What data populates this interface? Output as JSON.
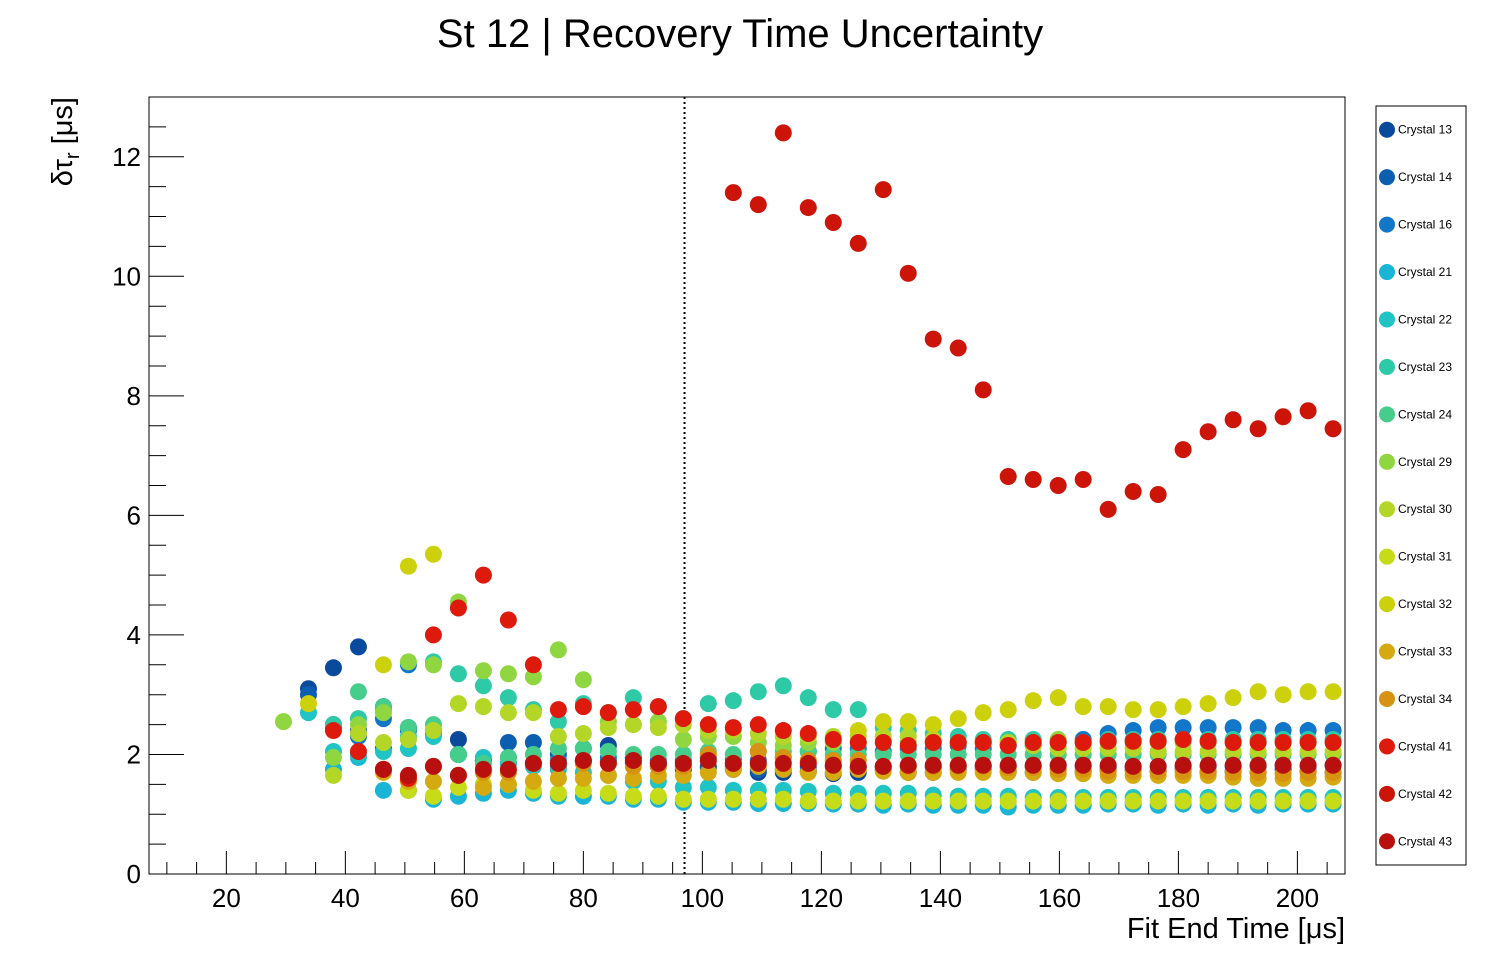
{
  "chart_data": {
    "type": "scatter",
    "title": "St 12 | Recovery Time Uncertainty",
    "xlabel": "Fit End Time [μs]",
    "ylabel": "δτr [μs]",
    "ylabel_main": "δτ",
    "ylabel_sub": "r",
    "ylabel_unit": " [μs]",
    "xlim": [
      7,
      208
    ],
    "ylim": [
      0,
      13
    ],
    "x_ticks": [
      "20",
      "40",
      "60",
      "80",
      "100",
      "120",
      "140",
      "160",
      "180",
      "200"
    ],
    "y_ticks": [
      "0",
      "2",
      "4",
      "6",
      "8",
      "10",
      "12"
    ],
    "vertical_line": {
      "x": 97,
      "style": "dotted"
    },
    "legend_position": "right",
    "x": [
      29.6,
      33.8,
      38.0,
      42.2,
      46.4,
      50.6,
      54.8,
      59.0,
      63.2,
      67.4,
      71.6,
      75.8,
      80.0,
      84.2,
      88.4,
      92.6,
      96.8,
      101.0,
      105.2,
      109.4,
      113.6,
      117.8,
      122.0,
      126.2,
      130.4,
      134.6,
      138.8,
      143.0,
      147.2,
      151.4,
      155.6,
      159.8,
      164.0,
      168.2,
      172.4,
      176.6,
      180.8,
      185.0,
      189.2,
      193.4,
      197.6,
      201.8,
      206.0
    ],
    "series": [
      {
        "name": "Crystal 13",
        "color": "#0a4a9c",
        "values": [
          null,
          3.1,
          3.45,
          3.8,
          2.8,
          2.45,
          2.4,
          2.25,
          1.9,
          1.85,
          1.85,
          1.8,
          2.1,
          2.15,
          1.95,
          1.85,
          1.75,
          1.8,
          1.75,
          1.7,
          1.7,
          1.72,
          1.68,
          1.7,
          1.75,
          1.7,
          1.7,
          1.75,
          1.75,
          1.72,
          1.7,
          1.75,
          1.72,
          1.75,
          1.75,
          1.72,
          1.75,
          1.7,
          1.72,
          1.7,
          1.75,
          1.72,
          1.7
        ]
      },
      {
        "name": "Crystal 14",
        "color": "#0c5fb0",
        "values": [
          null,
          3.0,
          2.5,
          2.4,
          2.1,
          2.4,
          2.35,
          2.0,
          1.9,
          2.2,
          2.2,
          2.0,
          1.9,
          1.9,
          1.85,
          1.8,
          1.8,
          1.78,
          1.8,
          1.75,
          1.75,
          1.8,
          1.8,
          1.78,
          1.8,
          1.8,
          1.78,
          1.8,
          1.8,
          1.8,
          1.8,
          1.82,
          1.8,
          1.8,
          1.8,
          1.8,
          1.8,
          1.8,
          1.8,
          1.8,
          1.82,
          1.8,
          1.82
        ]
      },
      {
        "name": "Crystal 16",
        "color": "#1277c9",
        "values": [
          null,
          null,
          2.45,
          2.3,
          2.6,
          3.5,
          2.4,
          2.0,
          1.9,
          1.95,
          1.85,
          1.9,
          1.9,
          1.95,
          1.95,
          1.9,
          1.9,
          1.95,
          1.92,
          1.9,
          1.95,
          2.05,
          2.1,
          2.1,
          2.05,
          2.1,
          2.1,
          2.15,
          2.1,
          2.15,
          2.15,
          2.2,
          2.25,
          2.35,
          2.4,
          2.45,
          2.45,
          2.45,
          2.45,
          2.45,
          2.4,
          2.4,
          2.4
        ]
      },
      {
        "name": "Crystal 21",
        "color": "#1ab4d6",
        "values": [
          null,
          null,
          1.75,
          1.95,
          1.4,
          1.4,
          1.25,
          1.3,
          1.35,
          1.4,
          1.35,
          1.3,
          1.3,
          1.3,
          1.25,
          1.25,
          1.2,
          1.2,
          1.2,
          1.18,
          1.18,
          1.18,
          1.17,
          1.17,
          1.15,
          1.17,
          1.15,
          1.15,
          1.15,
          1.12,
          1.15,
          1.15,
          1.15,
          1.17,
          1.17,
          1.15,
          1.17,
          1.15,
          1.17,
          1.15,
          1.17,
          1.17,
          1.17
        ]
      },
      {
        "name": "Crystal 22",
        "color": "#20c4c4",
        "values": [
          null,
          2.7,
          2.05,
          2.0,
          2.05,
          2.1,
          2.3,
          2.0,
          1.95,
          1.85,
          1.8,
          1.75,
          1.7,
          1.65,
          1.55,
          1.55,
          1.45,
          1.45,
          1.4,
          1.4,
          1.4,
          1.38,
          1.35,
          1.35,
          1.35,
          1.35,
          1.32,
          1.3,
          1.3,
          1.3,
          1.28,
          1.28,
          1.28,
          1.28,
          1.28,
          1.28,
          1.28,
          1.28,
          1.28,
          1.28,
          1.28,
          1.28,
          1.28
        ]
      },
      {
        "name": "Crystal 23",
        "color": "#2ecaa8",
        "values": [
          null,
          null,
          2.5,
          2.6,
          2.75,
          2.3,
          3.55,
          3.35,
          3.15,
          2.95,
          2.75,
          2.55,
          2.85,
          2.7,
          2.95,
          2.8,
          2.6,
          2.85,
          2.9,
          3.05,
          3.15,
          2.95,
          2.75,
          2.75,
          2.45,
          2.4,
          2.35,
          2.3,
          2.25,
          2.25,
          2.25,
          2.2,
          2.2,
          2.25,
          2.25,
          2.25,
          2.25,
          2.25,
          2.25,
          2.25,
          2.25,
          2.25,
          2.25
        ]
      },
      {
        "name": "Crystal 24",
        "color": "#47cd8b",
        "values": [
          null,
          null,
          null,
          3.05,
          2.8,
          2.45,
          2.5,
          2.0,
          1.85,
          1.95,
          2.0,
          2.1,
          2.1,
          2.05,
          2.0,
          2.0,
          2.0,
          2.05,
          2.0,
          2.05,
          2.05,
          2.05,
          2.0,
          2.0,
          2.0,
          2.0,
          2.0,
          2.0,
          2.0,
          2.0,
          2.0,
          2.0,
          2.0,
          2.0,
          2.0,
          2.0,
          2.0,
          2.0,
          2.0,
          2.0,
          2.0,
          2.0,
          2.0
        ]
      },
      {
        "name": "Crystal 29",
        "color": "#8fd640",
        "values": [
          2.55,
          null,
          1.95,
          2.5,
          2.7,
          3.55,
          3.5,
          4.55,
          3.4,
          3.35,
          3.3,
          3.75,
          3.25,
          2.55,
          2.5,
          2.55,
          2.25,
          2.3,
          2.3,
          2.2,
          2.15,
          2.2,
          2.2,
          2.2,
          2.25,
          2.2,
          2.2,
          2.2,
          2.2,
          2.2,
          2.2,
          2.25,
          2.2,
          2.2,
          2.2,
          2.2,
          2.2,
          2.2,
          2.2,
          2.2,
          2.2,
          2.2,
          2.2
        ]
      },
      {
        "name": "Crystal 30",
        "color": "#b4d626",
        "values": [
          null,
          null,
          1.65,
          2.35,
          2.2,
          2.25,
          2.4,
          2.85,
          2.8,
          2.7,
          2.7,
          2.3,
          2.35,
          2.45,
          2.5,
          2.45,
          2.5,
          2.4,
          2.4,
          2.35,
          2.3,
          2.3,
          2.3,
          2.3,
          2.3,
          2.3,
          2.25,
          2.2,
          2.2,
          2.2,
          2.15,
          2.1,
          2.1,
          2.1,
          2.1,
          2.05,
          2.05,
          2.05,
          2.05,
          2.05,
          2.05,
          2.05,
          2.05
        ]
      },
      {
        "name": "Crystal 31",
        "color": "#c6dc18",
        "values": [
          null,
          null,
          null,
          null,
          1.75,
          1.4,
          1.3,
          1.45,
          1.5,
          1.5,
          1.4,
          1.35,
          1.4,
          1.35,
          1.3,
          1.3,
          1.25,
          1.25,
          1.25,
          1.25,
          1.25,
          1.22,
          1.22,
          1.22,
          1.22,
          1.22,
          1.22,
          1.22,
          1.22,
          1.22,
          1.22,
          1.22,
          1.22,
          1.22,
          1.22,
          1.22,
          1.22,
          1.22,
          1.22,
          1.22,
          1.22,
          1.22,
          1.22
        ]
      },
      {
        "name": "Crystal 32",
        "color": "#cdd10c",
        "values": [
          null,
          2.85,
          null,
          null,
          3.5,
          5.15,
          5.35,
          null,
          null,
          null,
          null,
          null,
          null,
          null,
          null,
          null,
          null,
          null,
          null,
          null,
          null,
          null,
          null,
          2.4,
          2.55,
          2.55,
          2.5,
          2.6,
          2.7,
          2.75,
          2.9,
          2.95,
          2.8,
          2.8,
          2.75,
          2.75,
          2.8,
          2.85,
          2.95,
          3.05,
          3.0,
          3.05,
          3.05
        ]
      },
      {
        "name": "Crystal 33",
        "color": "#d4aa10",
        "values": [
          null,
          null,
          null,
          null,
          1.7,
          1.55,
          1.55,
          1.65,
          1.45,
          1.5,
          1.55,
          1.6,
          1.6,
          1.65,
          1.6,
          1.65,
          1.65,
          1.7,
          1.75,
          1.8,
          1.75,
          1.7,
          1.7,
          1.75,
          1.72,
          1.7,
          1.7,
          1.7,
          1.7,
          1.7,
          1.7,
          1.68,
          1.68,
          1.65,
          1.65,
          1.65,
          1.65,
          1.65,
          1.62,
          1.6,
          1.6,
          1.6,
          1.62
        ]
      },
      {
        "name": "Crystal 34",
        "color": "#d89212",
        "values": [
          null,
          null,
          null,
          null,
          null,
          1.6,
          1.8,
          1.65,
          1.7,
          1.7,
          1.85,
          1.85,
          1.85,
          1.85,
          1.8,
          1.8,
          1.8,
          2.0,
          1.85,
          2.05,
          1.95,
          1.9,
          1.9,
          1.9,
          1.8,
          1.8,
          1.8,
          1.8,
          1.8,
          1.78,
          1.78,
          1.75,
          1.75,
          1.72,
          1.72,
          1.72,
          1.72,
          1.72,
          1.7,
          1.7,
          1.68,
          1.7,
          1.7
        ]
      },
      {
        "name": "Crystal 41",
        "color": "#dd1a0c",
        "values": [
          null,
          null,
          2.4,
          2.05,
          1.75,
          1.6,
          4.0,
          4.45,
          5.0,
          4.25,
          3.5,
          2.75,
          2.8,
          2.7,
          2.75,
          2.8,
          2.6,
          2.5,
          2.45,
          2.5,
          2.4,
          2.35,
          2.25,
          2.2,
          2.2,
          2.15,
          2.2,
          2.2,
          2.2,
          2.15,
          2.2,
          2.2,
          2.2,
          2.22,
          2.22,
          2.22,
          2.25,
          2.22,
          2.2,
          2.2,
          2.2,
          2.2,
          2.2
        ]
      },
      {
        "name": "Crystal 42",
        "color": "#cc1508",
        "values": [
          null,
          null,
          null,
          null,
          null,
          null,
          null,
          null,
          null,
          null,
          null,
          null,
          null,
          null,
          null,
          null,
          null,
          null,
          11.4,
          11.2,
          12.4,
          11.15,
          10.9,
          10.55,
          11.45,
          10.05,
          8.95,
          8.8,
          8.1,
          6.65,
          6.6,
          6.5,
          6.6,
          6.1,
          6.4,
          6.35,
          7.1,
          7.4,
          7.6,
          7.45,
          7.65,
          7.75,
          7.45
        ]
      },
      {
        "name": "Crystal 43",
        "color": "#b8100e",
        "values": [
          null,
          null,
          null,
          null,
          1.75,
          1.65,
          1.8,
          1.65,
          1.75,
          1.75,
          1.85,
          1.85,
          1.9,
          1.85,
          1.9,
          1.85,
          1.85,
          1.9,
          1.85,
          1.85,
          1.85,
          1.85,
          1.82,
          1.8,
          1.8,
          1.82,
          1.82,
          1.82,
          1.82,
          1.82,
          1.82,
          1.82,
          1.82,
          1.82,
          1.8,
          1.8,
          1.82,
          1.82,
          1.82,
          1.82,
          1.82,
          1.82,
          1.82
        ]
      }
    ]
  }
}
